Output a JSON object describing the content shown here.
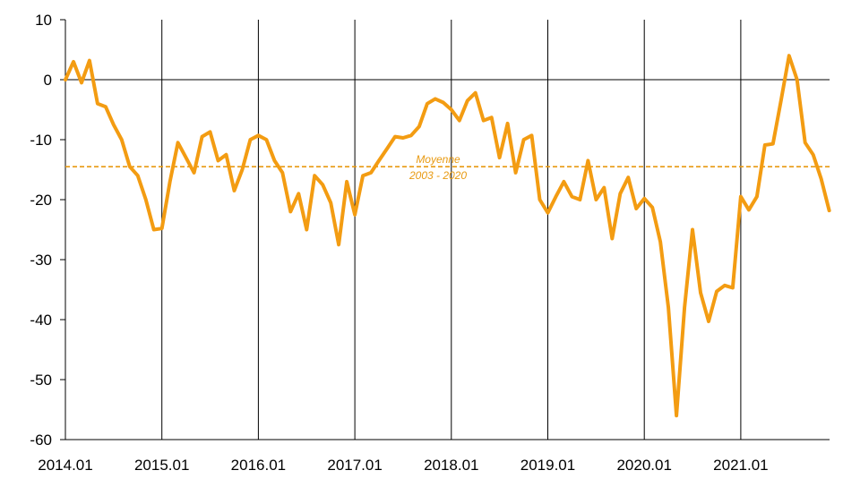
{
  "chart_data": {
    "type": "line",
    "colors": {
      "series": "#F39C12",
      "mean": "#E89A12",
      "grid": "#000000"
    },
    "ylim": [
      -60,
      10
    ],
    "yticks": [
      10,
      0,
      -10,
      -20,
      -30,
      -40,
      -50,
      -60
    ],
    "xticks": [
      "2014.01",
      "2015.01",
      "2016.01",
      "2017.01",
      "2018.01",
      "2019.01",
      "2020.01",
      "2021.01"
    ],
    "annotation": {
      "line1": "Moyenne",
      "line2": "2003 - 2020",
      "value": -14.5
    },
    "series": [
      {
        "values": [
          0.0,
          3.0,
          -0.5,
          3.2,
          -4.0,
          -4.5,
          -7.5,
          -10.0,
          -14.5,
          -16.0,
          -20.0,
          -25.0,
          -24.8,
          -17.0,
          -10.5,
          -13.0,
          -15.5,
          -9.5,
          -8.7,
          -13.5,
          -12.5,
          -18.5,
          -15.0,
          -10.0,
          -9.3,
          -10.0,
          -13.5,
          -15.5,
          -22.0,
          -19.0,
          -25.0,
          -16.0,
          -17.5,
          -20.5,
          -27.5,
          -17.0,
          -22.5,
          -16.0,
          -15.5,
          -13.5,
          -11.5,
          -9.5,
          -9.7,
          -9.3,
          -7.8,
          -4.0,
          -3.2,
          -3.8,
          -5.0,
          -6.8,
          -3.5,
          -2.2,
          -6.8,
          -6.3,
          -13.0,
          -7.3,
          -15.5,
          -10.0,
          -9.3,
          -20.0,
          -22.2,
          -19.5,
          -17.0,
          -19.5,
          -20.0,
          -13.5,
          -20.0,
          -18.0,
          -26.5,
          -19.0,
          -16.3,
          -21.5,
          -19.8,
          -21.3,
          -27.0,
          -38.0,
          -56.0,
          -38.0,
          -25.0,
          -35.5,
          -40.3,
          -35.3,
          -34.3,
          -34.7,
          -19.5,
          -21.7,
          -19.5,
          -10.9,
          -10.7,
          -3.5,
          4.0,
          0.0,
          -10.5,
          -12.5,
          -16.5,
          -21.8
        ]
      }
    ]
  }
}
